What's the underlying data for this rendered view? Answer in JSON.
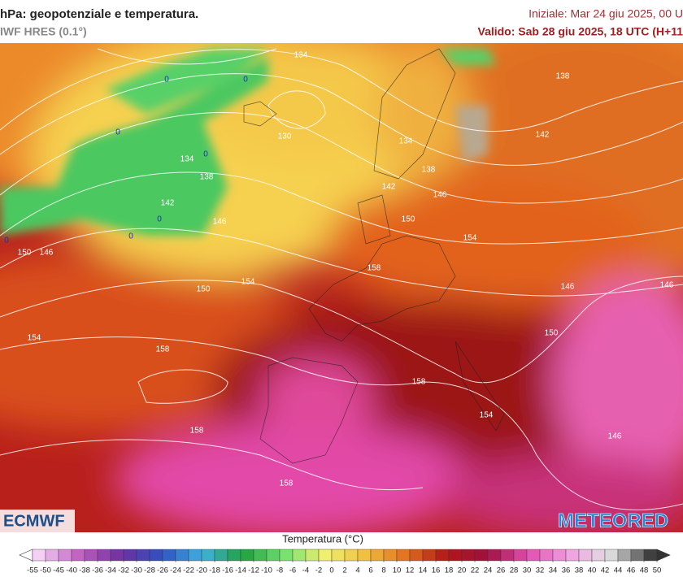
{
  "header": {
    "title": "hPa: geopotenziale e temperatura.",
    "model": "IWF HRES (0.1°)",
    "init": "Iniziale: Mar 24 giu 2025, 00 U",
    "valid": "Valido: Sab 28 giu 2025, 18 UTC (H+11"
  },
  "map": {
    "contour_labels": [
      "134",
      "130",
      "134",
      "138",
      "142",
      "146",
      "150",
      "146",
      "150",
      "154",
      "154",
      "158",
      "158",
      "158",
      "158",
      "154",
      "150",
      "146",
      "146",
      "146",
      "154",
      "158",
      "150",
      "142",
      "146",
      "138",
      "134",
      "138",
      "142"
    ],
    "isotherm_labels": [
      "0",
      "0",
      "0",
      "0",
      "0",
      "0",
      "0"
    ]
  },
  "logos": {
    "left": "ECMWF",
    "right": "METEORED"
  },
  "legend": {
    "title": "Temperatura (°C)",
    "ticks": [
      -55,
      -50,
      -45,
      -40,
      -38,
      -36,
      -34,
      -32,
      -30,
      -28,
      -26,
      -24,
      -22,
      -20,
      -18,
      -16,
      -14,
      -12,
      -10,
      -8,
      -6,
      -4,
      -2,
      0,
      2,
      4,
      6,
      8,
      10,
      12,
      14,
      16,
      18,
      20,
      22,
      24,
      26,
      28,
      30,
      32,
      34,
      36,
      38,
      40,
      42,
      44,
      46,
      48,
      50
    ]
  }
}
